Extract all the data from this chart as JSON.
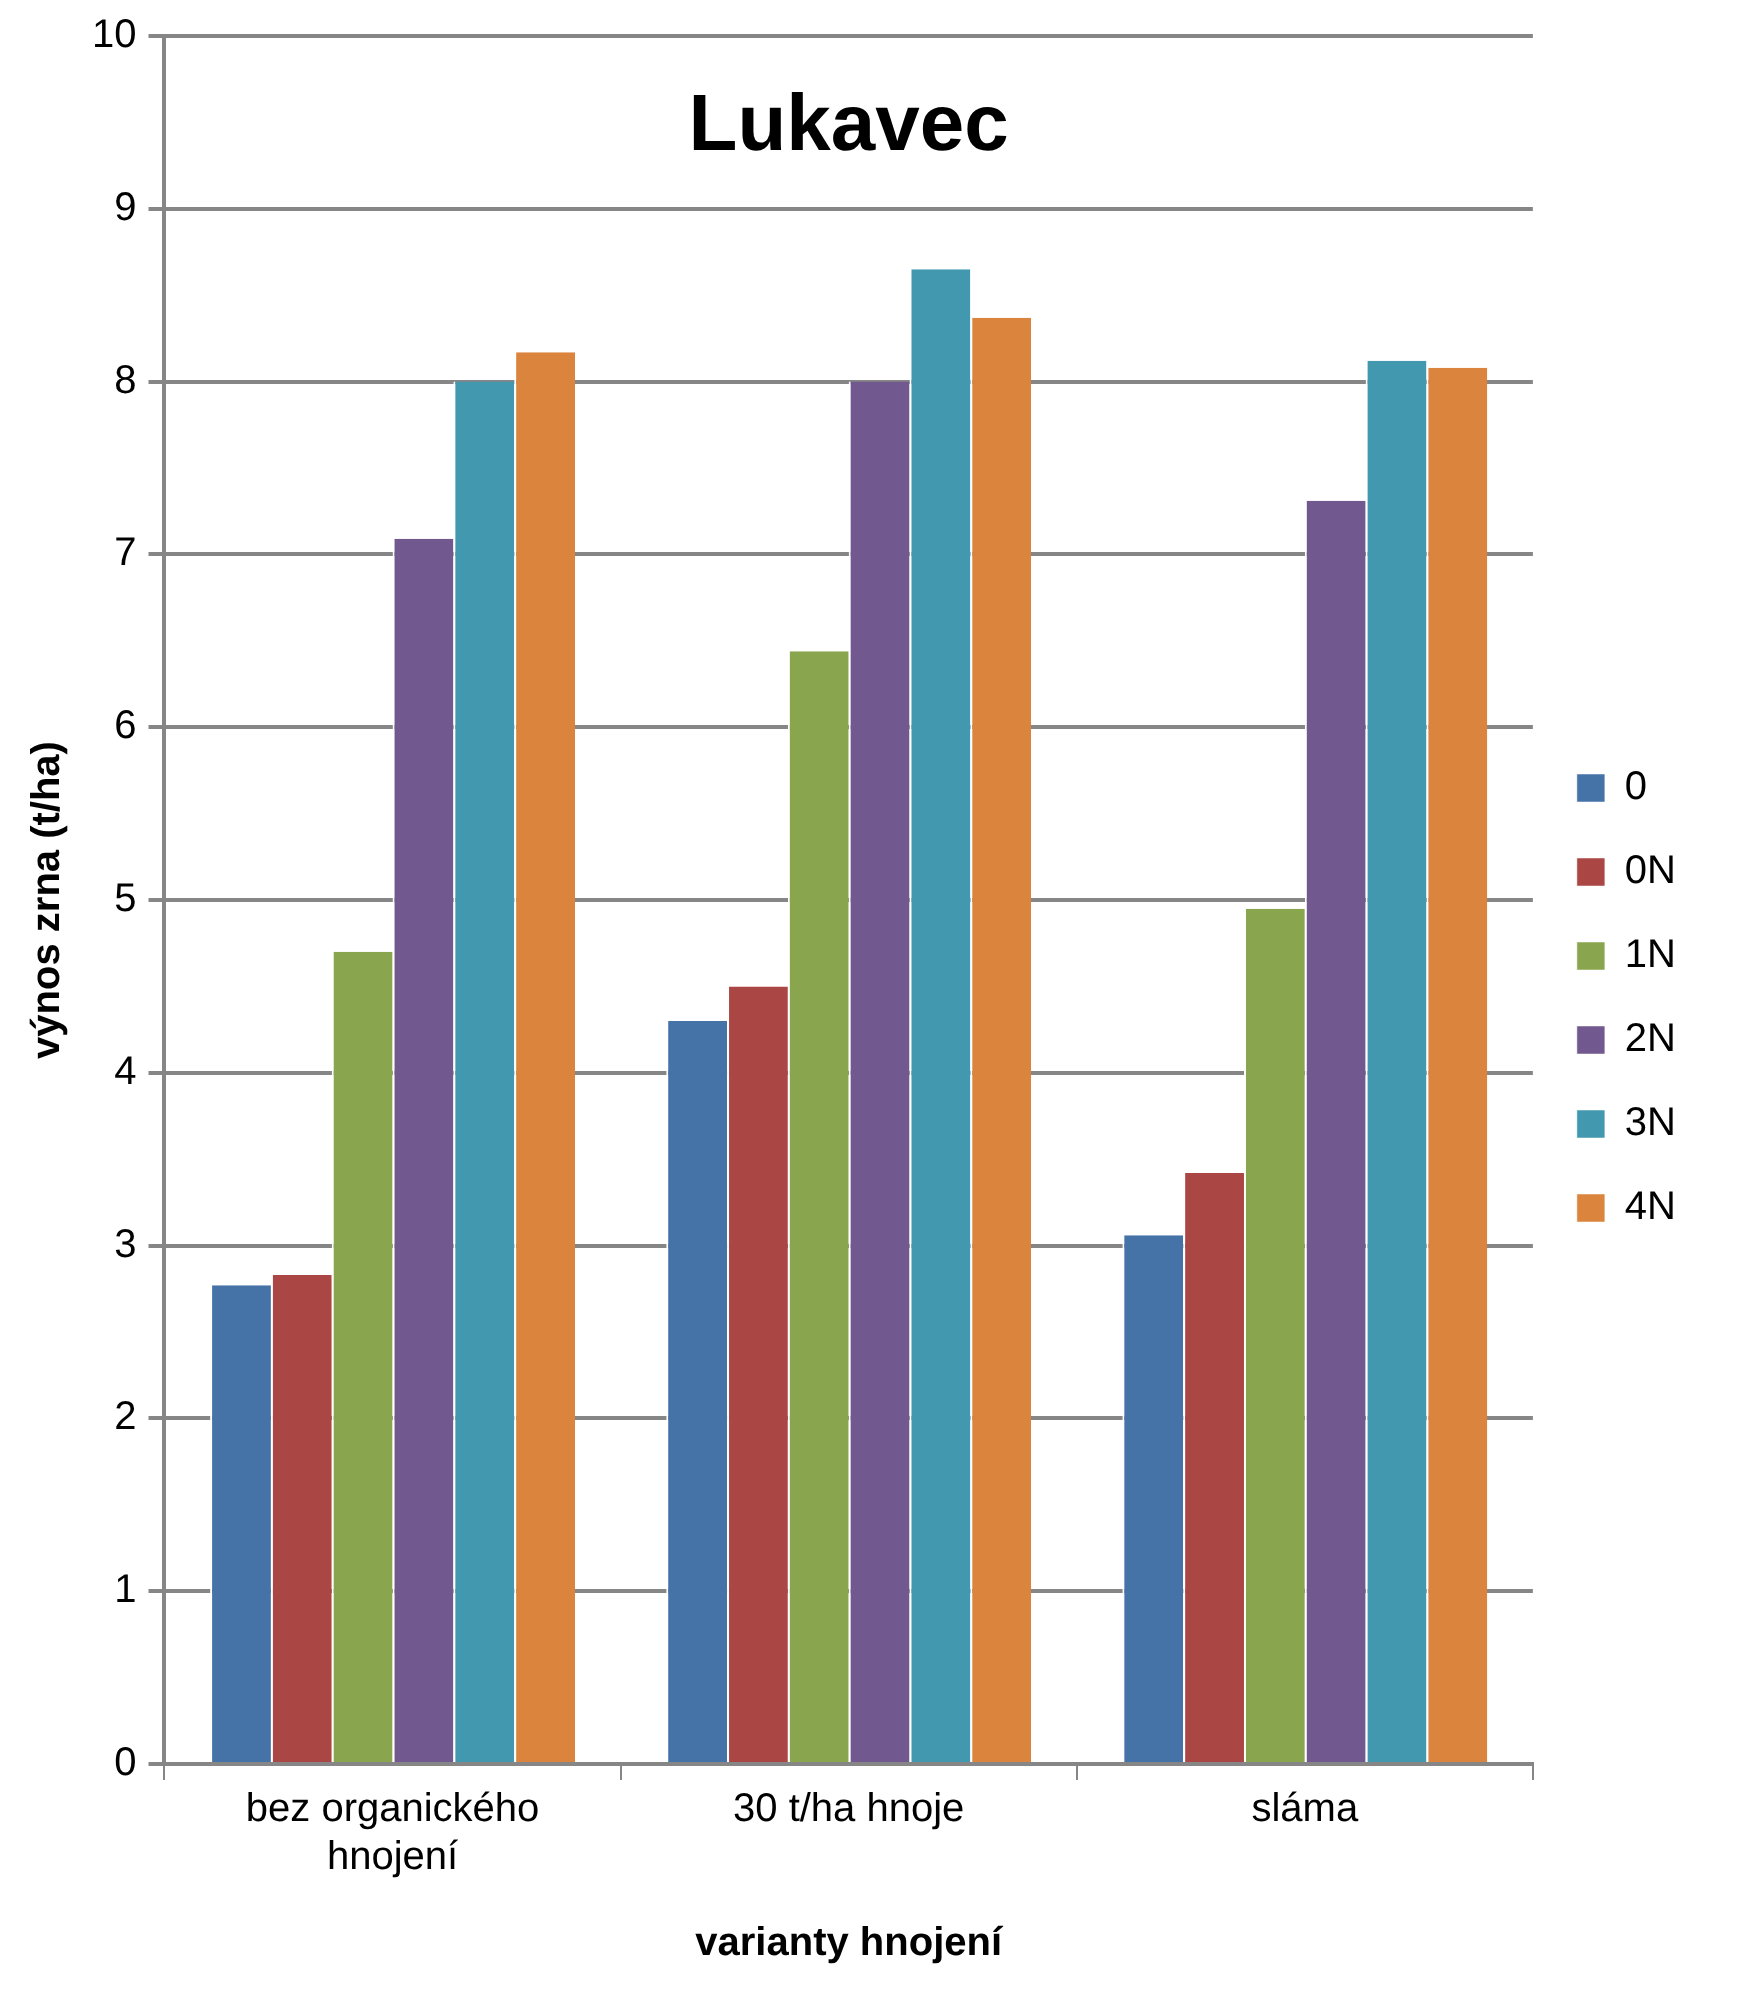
{
  "chart_data": {
    "type": "bar",
    "title": "Lukavec",
    "xlabel": "varianty hnojení",
    "ylabel": "výnos zrna (t/ha)",
    "categories": [
      "bez organického hnojení",
      "30 t/ha hnoje",
      "sláma"
    ],
    "series": [
      {
        "name": "0",
        "color": "#4572a7",
        "values": [
          2.77,
          4.3,
          3.06
        ]
      },
      {
        "name": "0N",
        "color": "#aa4643",
        "values": [
          2.83,
          4.5,
          3.42
        ]
      },
      {
        "name": "1N",
        "color": "#89a54e",
        "values": [
          4.7,
          6.44,
          4.95
        ]
      },
      {
        "name": "2N",
        "color": "#71588f",
        "values": [
          7.09,
          8.0,
          7.31
        ]
      },
      {
        "name": "3N",
        "color": "#4198af",
        "values": [
          8.0,
          8.65,
          8.12
        ]
      },
      {
        "name": "4N",
        "color": "#db843d",
        "values": [
          8.17,
          8.37,
          8.08
        ]
      }
    ],
    "ylim": [
      0,
      10
    ],
    "yticks": [
      0,
      1,
      2,
      3,
      4,
      5,
      6,
      7,
      8,
      9,
      10
    ],
    "grid": "y",
    "legend": "right"
  }
}
